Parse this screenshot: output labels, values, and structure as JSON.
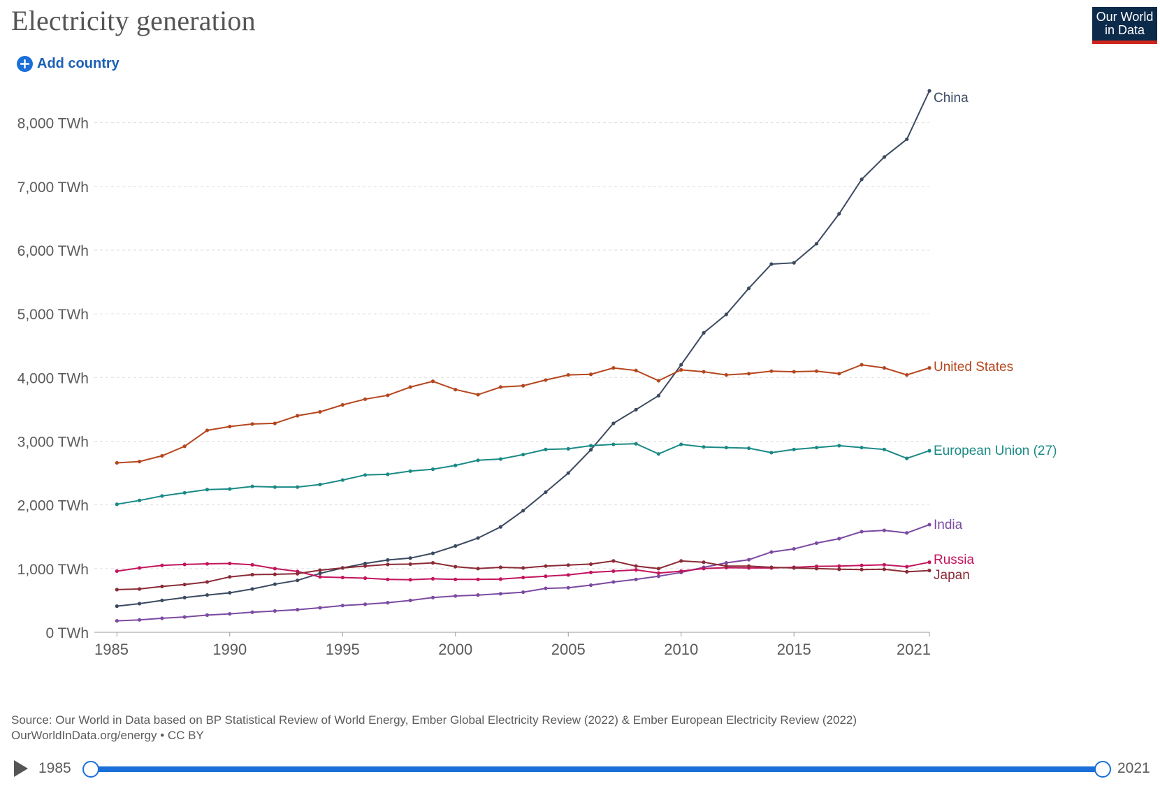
{
  "header": {
    "title": "Electricity generation",
    "add_country_label": "Add country",
    "logo_line1": "Our World",
    "logo_line2": "in Data"
  },
  "footer": {
    "source": "Source: Our World in Data based on BP Statistical Review of World Energy, Ember Global Electricity Review (2022) & Ember European Electricity Review (2022)",
    "license": "OurWorldInData.org/energy • CC BY"
  },
  "timeline": {
    "start_label": "1985",
    "end_label": "2021",
    "start_value": 1985,
    "end_value": 2021
  },
  "colors": {
    "China": "#3b4a60",
    "United States": "#b5461e",
    "European Union (27)": "#1a8a86",
    "India": "#7b4aa1",
    "Russia": "#c2155d",
    "Japan": "#8a2b36",
    "grid": "#dddddd",
    "axis_text": "#5b5b5b",
    "accent": "#1a6fd8"
  },
  "chart_data": {
    "type": "line",
    "title": "Electricity generation",
    "xlabel": "",
    "ylabel": "",
    "xlim": [
      1984,
      2021
    ],
    "ylim": [
      0,
      8500
    ],
    "y_ticks": [
      0,
      1000,
      2000,
      3000,
      4000,
      5000,
      6000,
      7000,
      8000
    ],
    "y_tick_labels": [
      "0 TWh",
      "1,000 TWh",
      "2,000 TWh",
      "3,000 TWh",
      "4,000 TWh",
      "5,000 TWh",
      "6,000 TWh",
      "7,000 TWh",
      "8,000 TWh"
    ],
    "x_ticks": [
      1985,
      1990,
      1995,
      2000,
      2005,
      2010,
      2015,
      2021
    ],
    "x_tick_labels": [
      "1985",
      "1990",
      "1995",
      "2000",
      "2005",
      "2010",
      "2015",
      "2021"
    ],
    "grid": "horizontal dashed",
    "legend": "line-end labels on right",
    "x": [
      1985,
      1986,
      1987,
      1988,
      1989,
      1990,
      1991,
      1992,
      1993,
      1994,
      1995,
      1996,
      1997,
      1998,
      1999,
      2000,
      2001,
      2002,
      2003,
      2004,
      2005,
      2006,
      2007,
      2008,
      2009,
      2010,
      2011,
      2012,
      2013,
      2014,
      2015,
      2016,
      2017,
      2018,
      2019,
      2020,
      2021
    ],
    "series": [
      {
        "name": "China",
        "values": [
          410,
          450,
          500,
          545,
          585,
          620,
          680,
          755,
          815,
          925,
          1010,
          1080,
          1135,
          1165,
          1240,
          1355,
          1480,
          1655,
          1910,
          2200,
          2500,
          2865,
          3280,
          3495,
          3715,
          4200,
          4700,
          4990,
          5400,
          5780,
          5800,
          6100,
          6570,
          7110,
          7460,
          7740,
          8500
        ]
      },
      {
        "name": "United States",
        "values": [
          2660,
          2680,
          2770,
          2920,
          3170,
          3230,
          3270,
          3280,
          3400,
          3460,
          3570,
          3660,
          3720,
          3850,
          3940,
          3810,
          3730,
          3850,
          3870,
          3960,
          4040,
          4050,
          4150,
          4110,
          3950,
          4120,
          4090,
          4040,
          4060,
          4100,
          4090,
          4100,
          4060,
          4200,
          4150,
          4040,
          4150
        ]
      },
      {
        "name": "European Union (27)",
        "values": [
          2010,
          2070,
          2140,
          2190,
          2240,
          2250,
          2290,
          2280,
          2280,
          2320,
          2390,
          2470,
          2480,
          2530,
          2560,
          2620,
          2700,
          2720,
          2790,
          2870,
          2880,
          2930,
          2950,
          2960,
          2800,
          2950,
          2910,
          2900,
          2890,
          2820,
          2870,
          2900,
          2930,
          2900,
          2870,
          2730,
          2850
        ]
      },
      {
        "name": "India",
        "values": [
          180,
          195,
          220,
          240,
          270,
          290,
          315,
          335,
          355,
          385,
          420,
          440,
          465,
          500,
          545,
          570,
          585,
          605,
          630,
          690,
          700,
          740,
          790,
          830,
          880,
          940,
          1020,
          1090,
          1140,
          1260,
          1310,
          1400,
          1470,
          1580,
          1600,
          1560,
          1690
        ]
      },
      {
        "name": "Russia",
        "values": [
          960,
          1010,
          1050,
          1065,
          1075,
          1080,
          1060,
          1000,
          955,
          870,
          860,
          850,
          830,
          825,
          840,
          830,
          830,
          835,
          860,
          880,
          900,
          940,
          960,
          980,
          930,
          960,
          1000,
          1015,
          1010,
          1010,
          1020,
          1035,
          1040,
          1050,
          1060,
          1030,
          1100
        ]
      },
      {
        "name": "Japan",
        "values": [
          670,
          680,
          720,
          750,
          790,
          870,
          905,
          910,
          920,
          975,
          1010,
          1040,
          1065,
          1070,
          1090,
          1030,
          1000,
          1020,
          1010,
          1040,
          1055,
          1070,
          1120,
          1040,
          1000,
          1120,
          1100,
          1040,
          1040,
          1020,
          1010,
          1000,
          990,
          985,
          990,
          950,
          970
        ]
      }
    ]
  }
}
